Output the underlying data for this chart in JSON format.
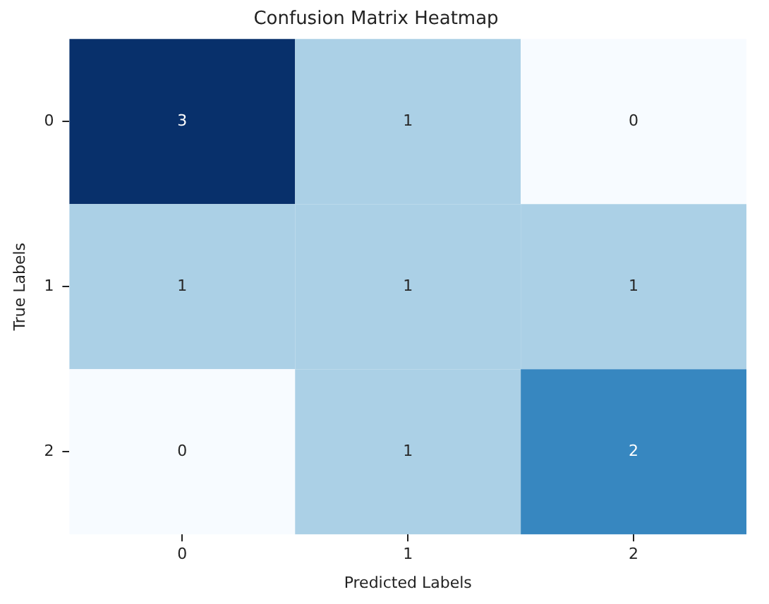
{
  "chart_data": {
    "type": "heatmap",
    "title": "Confusion Matrix Heatmap",
    "xlabel": "Predicted Labels",
    "ylabel": "True Labels",
    "categories": [
      "0",
      "1",
      "2"
    ],
    "y_categories": [
      "0",
      "1",
      "2"
    ],
    "cells": [
      [
        3,
        1,
        0
      ],
      [
        1,
        1,
        1
      ],
      [
        0,
        1,
        2
      ]
    ],
    "data_labels": true,
    "grid": false
  }
}
